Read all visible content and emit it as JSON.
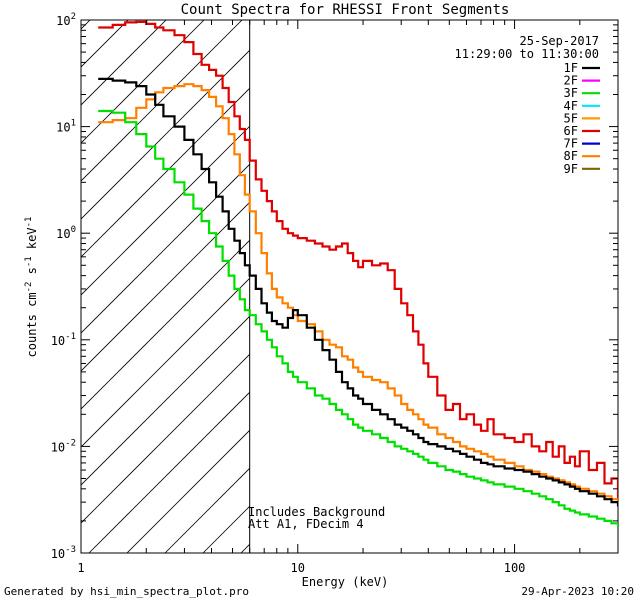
{
  "chart_data": {
    "type": "line",
    "title": "Count Spectra for RHESSI Front Segments",
    "xlabel": "Energy (keV)",
    "ylabel": "counts cm",
    "ylabel_parts": [
      "counts cm",
      "-2",
      " s",
      "-1",
      " keV",
      "-1"
    ],
    "xscale": "log",
    "yscale": "log",
    "xlim": [
      1,
      300
    ],
    "ylim": [
      0.001,
      100
    ],
    "x_ticks": [
      {
        "value": 1,
        "label": "1"
      },
      {
        "value": 10,
        "label": "10"
      },
      {
        "value": 100,
        "label": "100"
      }
    ],
    "y_ticks": [
      {
        "value": 0.001,
        "base": "10",
        "exp": "-3"
      },
      {
        "value": 0.01,
        "base": "10",
        "exp": "-2"
      },
      {
        "value": 0.1,
        "base": "10",
        "exp": "-1"
      },
      {
        "value": 1,
        "base": "10",
        "exp": "0"
      },
      {
        "value": 10,
        "base": "10",
        "exp": "1"
      },
      {
        "value": 100,
        "base": "10",
        "exp": "2"
      }
    ],
    "date": "25-Sep-2017",
    "time_range": "11:29:00 to 11:30:00",
    "attenuator_threshold_keV": 6,
    "annotations": [
      "Includes Background",
      "Att A1, FDecim 4"
    ],
    "legend": [
      {
        "name": "1F",
        "color": "#000000"
      },
      {
        "name": "2F",
        "color": "#ff00ff"
      },
      {
        "name": "3F",
        "color": "#00e000"
      },
      {
        "name": "4F",
        "color": "#00e5ff"
      },
      {
        "name": "5F",
        "color": "#ff9900"
      },
      {
        "name": "6F",
        "color": "#e00000"
      },
      {
        "name": "7F",
        "color": "#0000cc"
      },
      {
        "name": "8F",
        "color": "#ff8000"
      },
      {
        "name": "9F",
        "color": "#806000"
      }
    ],
    "series": [
      {
        "name": "6F",
        "color": "#e00000",
        "x": [
          1.2,
          1.4,
          1.6,
          1.8,
          2.0,
          2.2,
          2.4,
          2.7,
          3.0,
          3.3,
          3.6,
          3.9,
          4.2,
          4.5,
          4.8,
          5.1,
          5.4,
          5.7,
          6.0,
          6.4,
          6.8,
          7.2,
          7.6,
          8.0,
          8.5,
          9.0,
          9.5,
          10,
          11,
          12,
          13,
          14,
          15,
          16,
          17,
          18,
          19,
          20,
          22,
          24,
          26,
          28,
          30,
          32,
          34,
          36,
          38,
          40,
          44,
          48,
          52,
          56,
          60,
          65,
          70,
          75,
          80,
          90,
          100,
          110,
          120,
          130,
          140,
          150,
          160,
          170,
          180,
          190,
          200,
          220,
          240,
          260,
          280,
          300
        ],
        "y": [
          85,
          90,
          95,
          96,
          92,
          85,
          80,
          72,
          62,
          48,
          38,
          34,
          30,
          23,
          17,
          12.5,
          9.5,
          7.5,
          4.8,
          3.2,
          2.5,
          2.0,
          1.6,
          1.3,
          1.1,
          1.0,
          0.95,
          0.9,
          0.85,
          0.8,
          0.75,
          0.7,
          0.75,
          0.8,
          0.65,
          0.55,
          0.48,
          0.55,
          0.5,
          0.52,
          0.45,
          0.3,
          0.22,
          0.17,
          0.12,
          0.09,
          0.06,
          0.045,
          0.03,
          0.022,
          0.025,
          0.018,
          0.02,
          0.016,
          0.014,
          0.018,
          0.013,
          0.012,
          0.011,
          0.013,
          0.01,
          0.009,
          0.011,
          0.008,
          0.01,
          0.007,
          0.008,
          0.0065,
          0.009,
          0.006,
          0.007,
          0.0045,
          0.005,
          0.003
        ]
      },
      {
        "name": "8F",
        "color": "#ff8000",
        "x": [
          1.2,
          1.4,
          1.6,
          1.8,
          2.0,
          2.2,
          2.4,
          2.7,
          3.0,
          3.3,
          3.6,
          3.9,
          4.2,
          4.5,
          4.8,
          5.1,
          5.4,
          5.7,
          6.0,
          6.4,
          6.8,
          7.2,
          7.6,
          8.0,
          8.5,
          9.0,
          9.5,
          10,
          11,
          12,
          13,
          14,
          15,
          16,
          17,
          18,
          19,
          20,
          22,
          24,
          26,
          28,
          30,
          32,
          34,
          36,
          38,
          40,
          44,
          48,
          52,
          56,
          60,
          65,
          70,
          75,
          80,
          90,
          100,
          110,
          120,
          130,
          140,
          150,
          160,
          170,
          180,
          190,
          200,
          220,
          240,
          260,
          280,
          300
        ],
        "y": [
          11,
          11.5,
          12,
          15,
          18,
          21,
          23,
          24,
          25,
          24,
          22,
          19,
          15.5,
          12,
          8.5,
          5.5,
          3.5,
          2.3,
          1.6,
          1.0,
          0.65,
          0.42,
          0.3,
          0.25,
          0.22,
          0.2,
          0.17,
          0.15,
          0.14,
          0.12,
          0.1,
          0.09,
          0.085,
          0.07,
          0.065,
          0.055,
          0.05,
          0.045,
          0.042,
          0.04,
          0.035,
          0.03,
          0.025,
          0.022,
          0.02,
          0.018,
          0.016,
          0.015,
          0.013,
          0.012,
          0.011,
          0.01,
          0.0095,
          0.009,
          0.0085,
          0.008,
          0.0075,
          0.007,
          0.0065,
          0.006,
          0.0058,
          0.0055,
          0.0052,
          0.005,
          0.0048,
          0.0046,
          0.0044,
          0.0042,
          0.004,
          0.0038,
          0.0036,
          0.0034,
          0.0032,
          0.003
        ]
      },
      {
        "name": "1F",
        "color": "#000000",
        "x": [
          1.2,
          1.4,
          1.6,
          1.8,
          2.0,
          2.2,
          2.4,
          2.7,
          3.0,
          3.3,
          3.6,
          3.9,
          4.2,
          4.5,
          4.8,
          5.1,
          5.4,
          5.7,
          6.0,
          6.4,
          6.8,
          7.2,
          7.6,
          8.0,
          8.5,
          9.0,
          9.5,
          10,
          11,
          12,
          13,
          14,
          15,
          16,
          17,
          18,
          19,
          20,
          22,
          24,
          26,
          28,
          30,
          32,
          34,
          36,
          38,
          40,
          44,
          48,
          52,
          56,
          60,
          65,
          70,
          75,
          80,
          90,
          100,
          110,
          120,
          130,
          140,
          150,
          160,
          170,
          180,
          190,
          200,
          220,
          240,
          260,
          280,
          300
        ],
        "y": [
          28,
          27,
          26,
          24,
          20,
          16,
          12.5,
          10,
          7.5,
          5.5,
          4.0,
          3.0,
          2.2,
          1.6,
          1.1,
          0.85,
          0.65,
          0.5,
          0.4,
          0.3,
          0.22,
          0.18,
          0.15,
          0.14,
          0.13,
          0.16,
          0.19,
          0.17,
          0.13,
          0.1,
          0.08,
          0.065,
          0.05,
          0.04,
          0.035,
          0.03,
          0.028,
          0.025,
          0.022,
          0.02,
          0.018,
          0.016,
          0.015,
          0.014,
          0.013,
          0.012,
          0.011,
          0.0105,
          0.01,
          0.0095,
          0.009,
          0.0085,
          0.008,
          0.0075,
          0.007,
          0.0068,
          0.0065,
          0.0062,
          0.006,
          0.0058,
          0.0055,
          0.0052,
          0.005,
          0.0048,
          0.0046,
          0.0044,
          0.0042,
          0.004,
          0.0038,
          0.0036,
          0.0034,
          0.0032,
          0.003,
          0.0028
        ]
      },
      {
        "name": "3F",
        "color": "#00e000",
        "x": [
          1.2,
          1.4,
          1.6,
          1.8,
          2.0,
          2.2,
          2.4,
          2.7,
          3.0,
          3.3,
          3.6,
          3.9,
          4.2,
          4.5,
          4.8,
          5.1,
          5.4,
          5.7,
          6.0,
          6.4,
          6.8,
          7.2,
          7.6,
          8.0,
          8.5,
          9.0,
          9.5,
          10,
          11,
          12,
          13,
          14,
          15,
          16,
          17,
          18,
          19,
          20,
          22,
          24,
          26,
          28,
          30,
          32,
          34,
          36,
          38,
          40,
          44,
          48,
          52,
          56,
          60,
          65,
          70,
          75,
          80,
          90,
          100,
          110,
          120,
          130,
          140,
          150,
          160,
          170,
          180,
          190,
          200,
          220,
          240,
          260,
          280,
          300
        ],
        "y": [
          14,
          13.5,
          11,
          8.5,
          6.5,
          5,
          4,
          3,
          2.3,
          1.7,
          1.3,
          1.0,
          0.75,
          0.55,
          0.4,
          0.3,
          0.24,
          0.19,
          0.17,
          0.14,
          0.12,
          0.1,
          0.085,
          0.07,
          0.06,
          0.05,
          0.045,
          0.04,
          0.035,
          0.03,
          0.028,
          0.025,
          0.022,
          0.02,
          0.018,
          0.016,
          0.015,
          0.014,
          0.013,
          0.012,
          0.011,
          0.01,
          0.0095,
          0.009,
          0.0085,
          0.008,
          0.0075,
          0.007,
          0.0065,
          0.006,
          0.0058,
          0.0055,
          0.0052,
          0.005,
          0.0048,
          0.0046,
          0.0044,
          0.0042,
          0.004,
          0.0038,
          0.0036,
          0.0034,
          0.0032,
          0.003,
          0.0028,
          0.0026,
          0.0025,
          0.0024,
          0.0023,
          0.0022,
          0.0021,
          0.002,
          0.0019,
          0.0018
        ]
      }
    ]
  },
  "footer": {
    "generated_by": "Generated by hsi_min_spectra_plot.pro",
    "timestamp": "29-Apr-2023 10:20"
  }
}
